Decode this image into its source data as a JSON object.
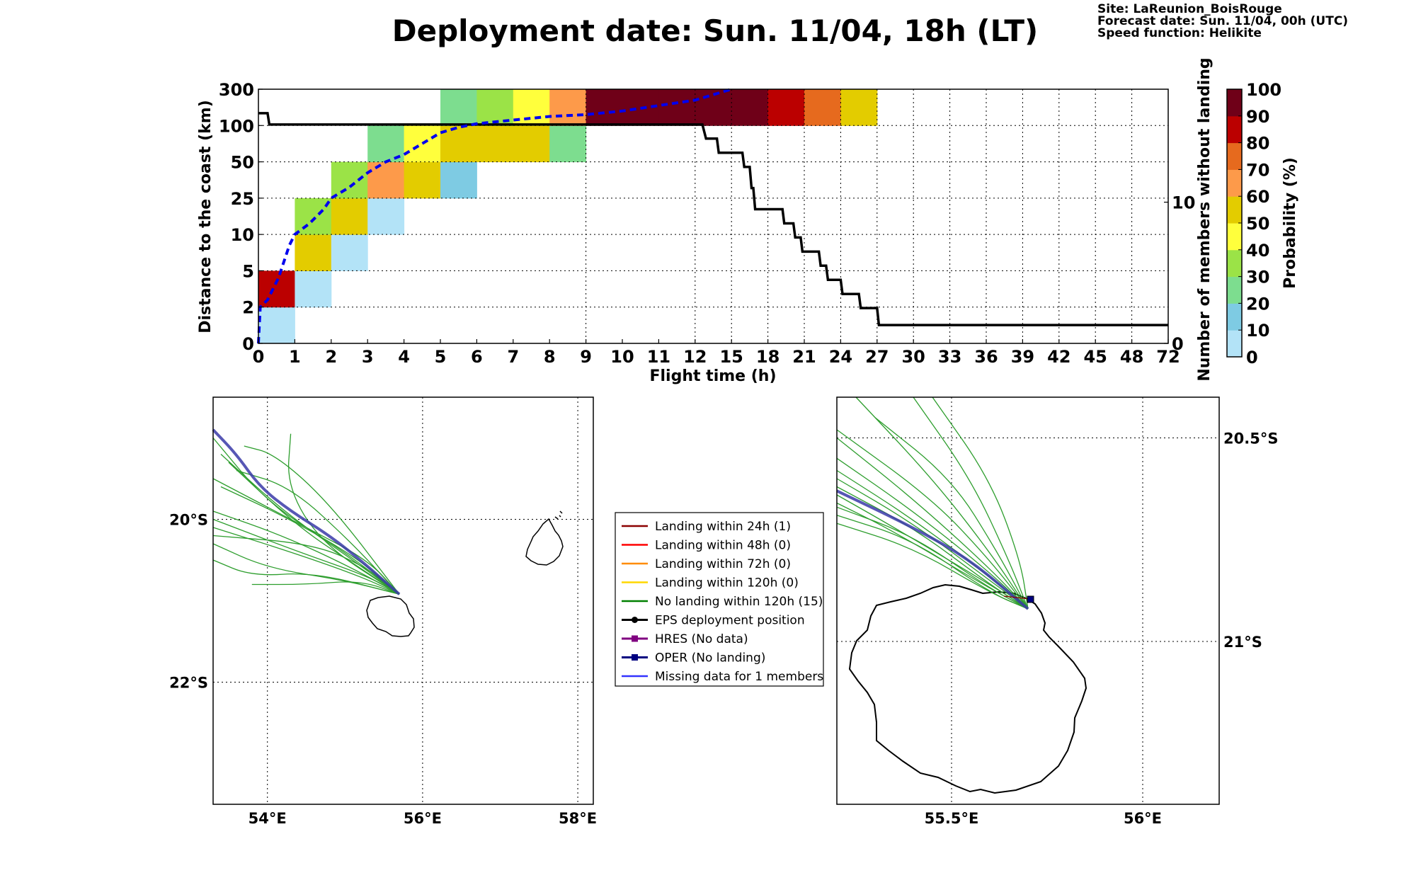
{
  "header": {
    "title": "Deployment date: Sun. 11/04, 18h (LT)",
    "site": "Site: LaReunion_BoisRouge",
    "forecast_date": "Forecast date: Sun. 11/04, 00h (UTC)",
    "speed_function": "Speed function: Helikite"
  },
  "chart_data": [
    {
      "type": "heatmap",
      "xlabel": "Flight time (h)",
      "ylabel": "Distance to the coast (km)",
      "y2label": "Number of members without landing",
      "x_ticks": [
        "0",
        "1",
        "2",
        "3",
        "4",
        "5",
        "6",
        "7",
        "8",
        "9",
        "10",
        "11",
        "12",
        "15",
        "18",
        "21",
        "24",
        "27",
        "30",
        "33",
        "36",
        "39",
        "42",
        "45",
        "48",
        "72"
      ],
      "y_ticks": [
        "0",
        "2",
        "5",
        "10",
        "25",
        "50",
        "100",
        "300"
      ],
      "y2_ticks": [
        "0",
        "10"
      ],
      "colorbar": {
        "label": "Probability (%)",
        "ticks": [
          "0",
          "10",
          "20",
          "30",
          "40",
          "50",
          "60",
          "70",
          "80",
          "90",
          "100"
        ],
        "colors": [
          "#b3e3f7",
          "#7ecbe3",
          "#7ddd8f",
          "#9be347",
          "#ffff3c",
          "#e3cc00",
          "#fd9a4a",
          "#e66a1e",
          "#bb0000",
          "#6f0018"
        ]
      },
      "cells": [
        {
          "x": 0,
          "y": 0,
          "p": 5
        },
        {
          "x": 0,
          "y": 1,
          "p": 85
        },
        {
          "x": 1,
          "y": 1,
          "p": 5
        },
        {
          "x": 1,
          "y": 2,
          "p": 55
        },
        {
          "x": 2,
          "y": 2,
          "p": 5
        },
        {
          "x": 1,
          "y": 3,
          "p": 35
        },
        {
          "x": 2,
          "y": 3,
          "p": 55
        },
        {
          "x": 3,
          "y": 3,
          "p": 5
        },
        {
          "x": 2,
          "y": 4,
          "p": 35
        },
        {
          "x": 3,
          "y": 4,
          "p": 65
        },
        {
          "x": 4,
          "y": 4,
          "p": 55
        },
        {
          "x": 5,
          "y": 4,
          "p": 15
        },
        {
          "x": 3,
          "y": 5,
          "p": 25
        },
        {
          "x": 4,
          "y": 5,
          "p": 45
        },
        {
          "x": 5,
          "y": 5,
          "p": 55
        },
        {
          "x": 6,
          "y": 5,
          "p": 55
        },
        {
          "x": 7,
          "y": 5,
          "p": 55
        },
        {
          "x": 8,
          "y": 5,
          "p": 25
        },
        {
          "x": 5,
          "y": 6,
          "p": 25
        },
        {
          "x": 6,
          "y": 6,
          "p": 35
        },
        {
          "x": 7,
          "y": 6,
          "p": 45
        },
        {
          "x": 8,
          "y": 6,
          "p": 65
        },
        {
          "x": 9,
          "y": 6,
          "p": 95
        },
        {
          "x": 10,
          "y": 6,
          "p": 95
        },
        {
          "x": 11,
          "y": 6,
          "p": 95
        },
        {
          "x": 12,
          "y": 6,
          "p": 95
        },
        {
          "x": 13,
          "y": 6,
          "p": 95
        },
        {
          "x": 14,
          "y": 6,
          "p": 85
        },
        {
          "x": 15,
          "y": 6,
          "p": 75
        },
        {
          "x": 16,
          "y": 6,
          "p": 55
        }
      ],
      "median_distance": {
        "name": "median distance",
        "color": "#0000ee",
        "points": [
          [
            0,
            0
          ],
          [
            0.05,
            1.0
          ],
          [
            0.25,
            1.2
          ],
          [
            0.55,
            1.8
          ],
          [
            0.85,
            2.7
          ],
          [
            1.0,
            3.0
          ],
          [
            1.4,
            3.3
          ],
          [
            1.8,
            3.7
          ],
          [
            2.0,
            4.0
          ],
          [
            2.5,
            4.3
          ],
          [
            3.0,
            4.7
          ],
          [
            3.5,
            5.0
          ],
          [
            4.0,
            5.2
          ],
          [
            4.5,
            5.5
          ],
          [
            5.0,
            5.8
          ],
          [
            5.5,
            5.95
          ],
          [
            6.0,
            6.05
          ],
          [
            7.0,
            6.15
          ],
          [
            8.0,
            6.25
          ],
          [
            9.0,
            6.3
          ],
          [
            10.0,
            6.4
          ],
          [
            11.0,
            6.55
          ],
          [
            12.0,
            6.7
          ],
          [
            13.0,
            7.0
          ]
        ]
      },
      "members_without_landing": {
        "name": "members without landing",
        "color": "#000000",
        "ymax": 18,
        "points": [
          [
            0,
            16.3
          ],
          [
            0.25,
            16.3
          ],
          [
            0.3,
            15.5
          ],
          [
            12.2,
            15.5
          ],
          [
            12.3,
            14.5
          ],
          [
            12.6,
            14.5
          ],
          [
            12.65,
            13.5
          ],
          [
            13.3,
            13.5
          ],
          [
            13.35,
            12.5
          ],
          [
            13.5,
            12.5
          ],
          [
            13.55,
            11.0
          ],
          [
            13.6,
            11.0
          ],
          [
            13.65,
            9.5
          ],
          [
            14.4,
            9.5
          ],
          [
            14.45,
            8.5
          ],
          [
            14.7,
            8.5
          ],
          [
            14.75,
            7.5
          ],
          [
            14.9,
            7.5
          ],
          [
            14.95,
            6.5
          ],
          [
            15.4,
            6.5
          ],
          [
            15.45,
            5.5
          ],
          [
            15.6,
            5.5
          ],
          [
            15.65,
            4.5
          ],
          [
            16.0,
            4.5
          ],
          [
            16.05,
            3.5
          ],
          [
            16.5,
            3.5
          ],
          [
            16.55,
            2.5
          ],
          [
            17.0,
            2.5
          ],
          [
            17.05,
            1.3
          ],
          [
            25.0,
            1.3
          ]
        ]
      }
    },
    {
      "type": "map",
      "name": "large-scale trajectories",
      "lon_ticks": [
        "54°E",
        "56°E",
        "58°E"
      ],
      "lat_ticks": [
        "20°S",
        "22°S"
      ],
      "lon_range": [
        53.3,
        58.2
      ],
      "lat_range": [
        -23.5,
        -18.5
      ],
      "deployment": {
        "lon": 55.7,
        "lat": -20.92
      },
      "oper_track": [
        [
          53.3,
          -18.9
        ],
        [
          53.6,
          -19.2
        ],
        [
          53.9,
          -19.6
        ],
        [
          54.3,
          -19.9
        ],
        [
          54.8,
          -20.2
        ],
        [
          55.2,
          -20.5
        ],
        [
          55.7,
          -20.92
        ]
      ],
      "member_tracks": [
        [
          [
            53.3,
            -19.0
          ],
          [
            54.0,
            -19.8
          ],
          [
            55.0,
            -20.4
          ],
          [
            55.7,
            -20.92
          ]
        ],
        [
          [
            53.4,
            -19.2
          ],
          [
            54.2,
            -19.9
          ],
          [
            55.1,
            -20.5
          ],
          [
            55.7,
            -20.92
          ]
        ],
        [
          [
            53.5,
            -19.3
          ],
          [
            54.4,
            -20.1
          ],
          [
            55.2,
            -20.6
          ],
          [
            55.7,
            -20.92
          ]
        ],
        [
          [
            53.3,
            -19.9
          ],
          [
            54.2,
            -20.2
          ],
          [
            55.1,
            -20.6
          ],
          [
            55.7,
            -20.92
          ]
        ],
        [
          [
            53.3,
            -20.1
          ],
          [
            54.3,
            -20.4
          ],
          [
            55.2,
            -20.7
          ],
          [
            55.7,
            -20.92
          ]
        ],
        [
          [
            53.3,
            -20.3
          ],
          [
            54.0,
            -20.6
          ],
          [
            55.0,
            -20.75
          ],
          [
            55.7,
            -20.92
          ]
        ],
        [
          [
            53.3,
            -20.5
          ],
          [
            53.8,
            -20.7
          ],
          [
            54.6,
            -20.65
          ],
          [
            55.7,
            -20.92
          ]
        ],
        [
          [
            53.8,
            -20.8
          ],
          [
            54.5,
            -20.8
          ],
          [
            55.2,
            -20.75
          ],
          [
            55.7,
            -20.92
          ]
        ],
        [
          [
            53.3,
            -20.2
          ],
          [
            54.6,
            -20.3
          ],
          [
            55.3,
            -20.6
          ],
          [
            55.7,
            -20.92
          ]
        ],
        [
          [
            53.6,
            -19.4
          ],
          [
            54.3,
            -19.6
          ],
          [
            55.1,
            -20.3
          ],
          [
            55.7,
            -20.92
          ]
        ],
        [
          [
            53.7,
            -19.1
          ],
          [
            54.1,
            -19.2
          ],
          [
            54.8,
            -19.8
          ],
          [
            55.7,
            -20.92
          ]
        ],
        [
          [
            54.3,
            -18.95
          ],
          [
            54.25,
            -19.6
          ],
          [
            54.7,
            -20.3
          ],
          [
            55.7,
            -20.92
          ]
        ],
        [
          [
            53.4,
            -19.6
          ],
          [
            54.3,
            -20.0
          ],
          [
            55.2,
            -20.5
          ],
          [
            55.7,
            -20.92
          ]
        ],
        [
          [
            53.3,
            -20.0
          ],
          [
            54.4,
            -20.4
          ],
          [
            55.3,
            -20.7
          ],
          [
            55.7,
            -20.92
          ]
        ],
        [
          [
            53.3,
            -19.5
          ],
          [
            54.5,
            -20.1
          ],
          [
            55.3,
            -20.5
          ],
          [
            55.7,
            -20.92
          ]
        ]
      ]
    },
    {
      "type": "map",
      "name": "zoomed trajectories",
      "lon_ticks": [
        "55.5°E",
        "56°E"
      ],
      "lat_ticks": [
        "20.5°S",
        "21°S"
      ],
      "lon_range": [
        55.2,
        56.2
      ],
      "lat_range": [
        -21.4,
        -20.4
      ],
      "deployment": {
        "lon": 55.7,
        "lat": -20.92
      },
      "oper_track": [
        [
          55.2,
          -20.63
        ],
        [
          55.4,
          -20.72
        ],
        [
          55.55,
          -20.8
        ],
        [
          55.7,
          -20.92
        ]
      ],
      "member_tracks": [
        [
          [
            55.25,
            -20.4
          ],
          [
            55.45,
            -20.6
          ],
          [
            55.6,
            -20.78
          ],
          [
            55.7,
            -20.92
          ]
        ],
        [
          [
            55.4,
            -20.4
          ],
          [
            55.55,
            -20.6
          ],
          [
            55.65,
            -20.8
          ],
          [
            55.7,
            -20.92
          ]
        ],
        [
          [
            55.2,
            -20.48
          ],
          [
            55.45,
            -20.65
          ],
          [
            55.6,
            -20.8
          ],
          [
            55.7,
            -20.92
          ]
        ],
        [
          [
            55.2,
            -20.5
          ],
          [
            55.4,
            -20.65
          ],
          [
            55.6,
            -20.82
          ],
          [
            55.7,
            -20.92
          ]
        ],
        [
          [
            55.2,
            -20.55
          ],
          [
            55.4,
            -20.68
          ],
          [
            55.6,
            -20.83
          ],
          [
            55.7,
            -20.92
          ]
        ],
        [
          [
            55.2,
            -20.58
          ],
          [
            55.4,
            -20.7
          ],
          [
            55.6,
            -20.84
          ],
          [
            55.7,
            -20.92
          ]
        ],
        [
          [
            55.2,
            -20.6
          ],
          [
            55.4,
            -20.71
          ],
          [
            55.6,
            -20.85
          ],
          [
            55.7,
            -20.92
          ]
        ],
        [
          [
            55.2,
            -20.62
          ],
          [
            55.4,
            -20.72
          ],
          [
            55.6,
            -20.86
          ],
          [
            55.7,
            -20.92
          ]
        ],
        [
          [
            55.2,
            -20.64
          ],
          [
            55.35,
            -20.72
          ],
          [
            55.6,
            -20.86
          ],
          [
            55.7,
            -20.92
          ]
        ],
        [
          [
            55.2,
            -20.66
          ],
          [
            55.35,
            -20.73
          ],
          [
            55.6,
            -20.87
          ],
          [
            55.7,
            -20.92
          ]
        ],
        [
          [
            55.2,
            -20.67
          ],
          [
            55.4,
            -20.74
          ],
          [
            55.6,
            -20.87
          ],
          [
            55.7,
            -20.92
          ]
        ],
        [
          [
            55.2,
            -20.69
          ],
          [
            55.4,
            -20.75
          ],
          [
            55.6,
            -20.88
          ],
          [
            55.7,
            -20.92
          ]
        ],
        [
          [
            55.2,
            -20.71
          ],
          [
            55.4,
            -20.77
          ],
          [
            55.6,
            -20.88
          ],
          [
            55.7,
            -20.92
          ]
        ],
        [
          [
            55.45,
            -20.4
          ],
          [
            55.6,
            -20.6
          ],
          [
            55.68,
            -20.8
          ],
          [
            55.7,
            -20.92
          ]
        ],
        [
          [
            55.3,
            -20.45
          ],
          [
            55.5,
            -20.6
          ],
          [
            55.62,
            -20.78
          ],
          [
            55.7,
            -20.92
          ]
        ]
      ]
    }
  ],
  "legend": {
    "items": [
      {
        "label": "Landing within 24h (1)",
        "color": "#8b0000",
        "marker": "none"
      },
      {
        "label": "Landing within 48h (0)",
        "color": "#ff0000",
        "marker": "none"
      },
      {
        "label": "Landing within 72h (0)",
        "color": "#ff8c00",
        "marker": "none"
      },
      {
        "label": "Landing within 120h (0)",
        "color": "#ffd700",
        "marker": "none"
      },
      {
        "label": "No landing within 120h (15)",
        "color": "#008000",
        "marker": "none"
      },
      {
        "label": "EPS deployment position",
        "color": "#000000",
        "marker": "circle"
      },
      {
        "label": "HRES (No data)",
        "color": "#800080",
        "marker": "square"
      },
      {
        "label": "OPER (No landing)",
        "color": "#000080",
        "marker": "square"
      },
      {
        "label": "Missing data for 1 members",
        "color": "#3333ff",
        "marker": "none"
      }
    ]
  }
}
